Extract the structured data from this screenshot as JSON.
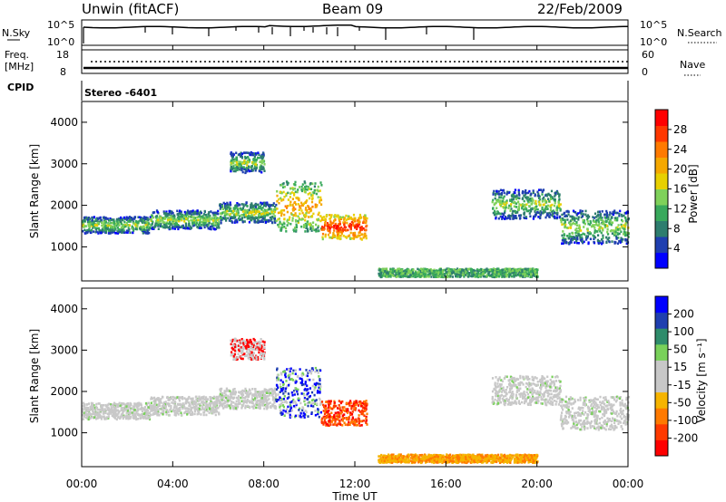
{
  "header": {
    "station": "Unwin (fitACF)",
    "beam": "Beam 09",
    "date": "22/Feb/2009"
  },
  "top_panels": {
    "nsky": {
      "label": "N.Sky",
      "ticks": [
        "10^5",
        "10^0"
      ]
    },
    "nsearch": {
      "label": "N.Search",
      "ticks": [
        "10^5",
        "10^0"
      ]
    },
    "freq": {
      "label_line1": "Freq.",
      "label_line2": "[MHz]",
      "ticks": [
        "18",
        "8"
      ]
    },
    "nave": {
      "label": "Nave",
      "ticks": [
        "60",
        "0"
      ]
    },
    "cpid": {
      "label": "CPID",
      "value": "Stereo -6401"
    }
  },
  "colors": {
    "power": [
      "#0000ff",
      "#1f3fb0",
      "#2e7d6e",
      "#39a95c",
      "#7fd15a",
      "#e8d000",
      "#f5a800",
      "#ff7a00",
      "#ff3800",
      "#ff0000"
    ],
    "velocity": [
      "#ff0000",
      "#ff3a00",
      "#ff7a00",
      "#f6b400",
      "#c8c8c8",
      "#c8c8c8",
      "#79d15a",
      "#2f8c6b",
      "#1f3fb0",
      "#0000ff"
    ]
  },
  "chart_data": [
    {
      "type": "heatmap",
      "name_ref": "power",
      "xlabel": "",
      "ylabel": "Slant Range [km]",
      "xlim": [
        0,
        24
      ],
      "ylim": [
        180,
        4500
      ],
      "yticks": [
        "1000",
        "2000",
        "3000",
        "4000"
      ],
      "colorbar": {
        "label": "Power [dB]",
        "range": [
          0,
          32
        ],
        "ticks": [
          "4",
          "8",
          "12",
          "16",
          "20",
          "24",
          "28"
        ]
      },
      "echo_bands": [
        {
          "t0": 0.0,
          "t1": 3.0,
          "r0": 1350,
          "r1": 1750
        },
        {
          "t0": 3.0,
          "t1": 6.0,
          "r0": 1450,
          "r1": 1900
        },
        {
          "t0": 6.0,
          "t1": 8.5,
          "r0": 1600,
          "r1": 2100
        },
        {
          "t0": 8.5,
          "t1": 10.5,
          "r0": 1400,
          "r1": 2600
        },
        {
          "t0": 10.5,
          "t1": 12.5,
          "r0": 1200,
          "r1": 1800
        },
        {
          "t0": 6.5,
          "t1": 8.0,
          "r0": 2800,
          "r1": 3300
        },
        {
          "t0": 18.0,
          "t1": 21.0,
          "r0": 1700,
          "r1": 2400
        },
        {
          "t0": 21.0,
          "t1": 24.0,
          "r0": 1100,
          "r1": 1900
        },
        {
          "t0": 13.0,
          "t1": 20.0,
          "r0": 300,
          "r1": 500
        }
      ]
    },
    {
      "type": "heatmap",
      "name_ref": "velocity",
      "xlabel": "Time UT",
      "ylabel": "Slant Range [km]",
      "xlim": [
        0,
        24
      ],
      "ylim": [
        180,
        4500
      ],
      "xticks": [
        "00:00",
        "04:00",
        "08:00",
        "12:00",
        "16:00",
        "20:00",
        "00:00"
      ],
      "yticks": [
        "1000",
        "2000",
        "3000",
        "4000"
      ],
      "colorbar": {
        "label": "Velocity [m s⁻¹]",
        "range": [
          -250,
          250
        ],
        "ticks": [
          "200",
          "100",
          "50",
          "15",
          "-15",
          "-50",
          "-100",
          "-200"
        ]
      },
      "echo_bands": [
        {
          "t0": 0.0,
          "t1": 3.0,
          "r0": 1350,
          "r1": 1750
        },
        {
          "t0": 3.0,
          "t1": 6.0,
          "r0": 1450,
          "r1": 1900
        },
        {
          "t0": 6.0,
          "t1": 8.5,
          "r0": 1600,
          "r1": 2100
        },
        {
          "t0": 8.5,
          "t1": 10.5,
          "r0": 1400,
          "r1": 2600
        },
        {
          "t0": 10.5,
          "t1": 12.5,
          "r0": 1200,
          "r1": 1800
        },
        {
          "t0": 6.5,
          "t1": 8.0,
          "r0": 2800,
          "r1": 3300
        },
        {
          "t0": 18.0,
          "t1": 21.0,
          "r0": 1700,
          "r1": 2400
        },
        {
          "t0": 21.0,
          "t1": 24.0,
          "r0": 1100,
          "r1": 1900
        },
        {
          "t0": 13.0,
          "t1": 20.0,
          "r0": 300,
          "r1": 500
        }
      ]
    }
  ]
}
